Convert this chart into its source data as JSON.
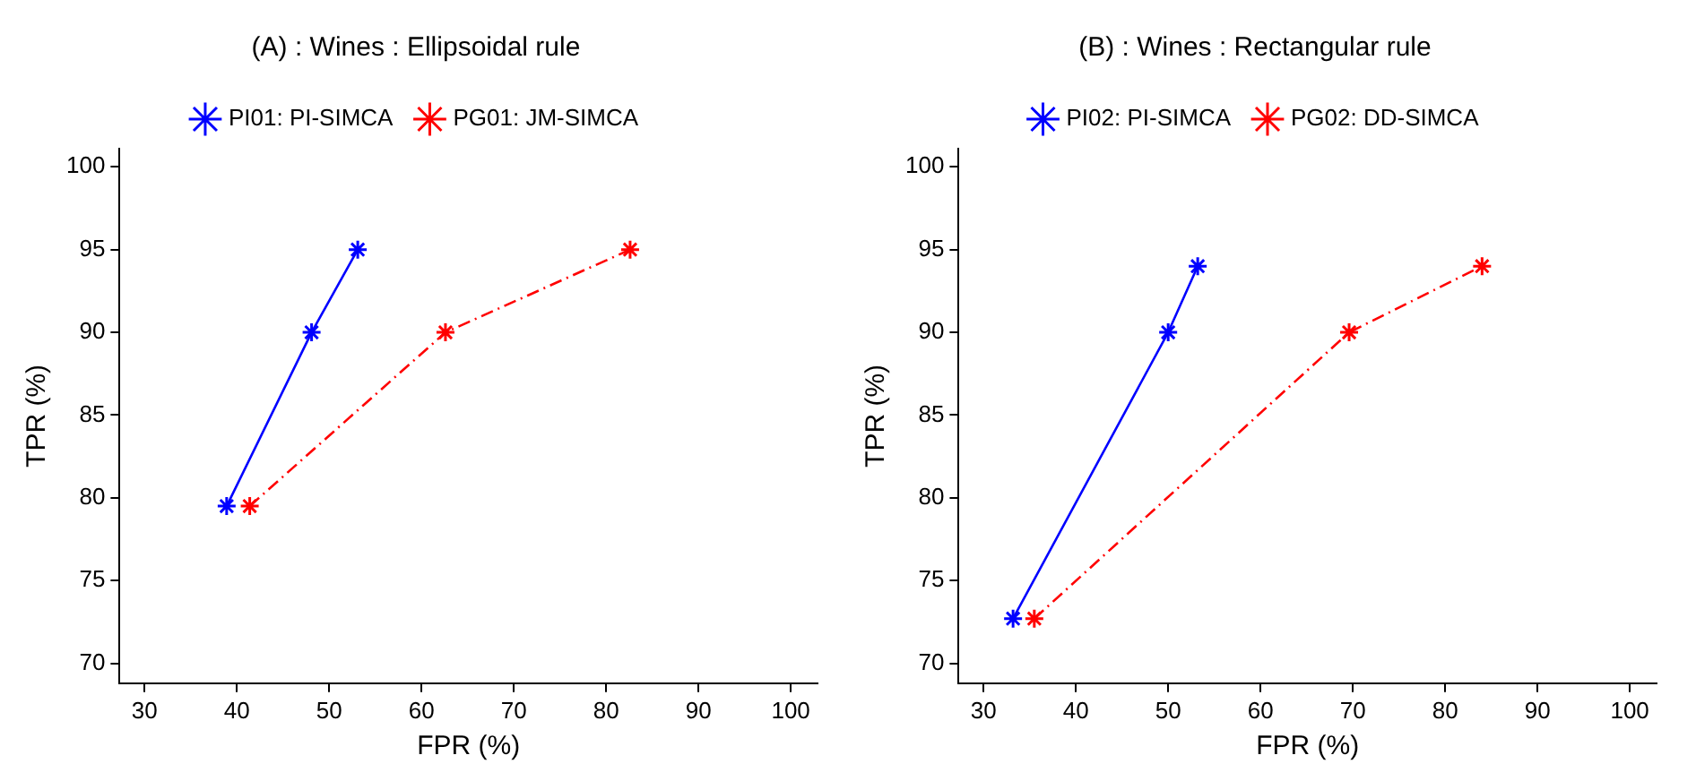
{
  "chart_data": [
    {
      "type": "line",
      "title": "(A) : Wines : Ellipsoidal rule",
      "xlabel": "FPR (%)",
      "ylabel": "TPR (%)",
      "xlim": [
        27.3,
        102.9
      ],
      "ylim": [
        68.8,
        101.1
      ],
      "xticks": [
        30,
        40,
        50,
        60,
        70,
        80,
        90,
        100
      ],
      "yticks": [
        70,
        75,
        80,
        85,
        90,
        95,
        100
      ],
      "grid": false,
      "legend": "top",
      "series": [
        {
          "name": "PI01: PI-SIMCA",
          "color": "#0000ff",
          "x": [
            38.9,
            48.1,
            53.1
          ],
          "values": [
            79.5,
            90,
            95
          ],
          "marker": "cross",
          "line_style": "solid"
        },
        {
          "name": "PG01: JM-SIMCA",
          "color": "#ff0000",
          "x": [
            41.4,
            62.6,
            82.6
          ],
          "values": [
            79.5,
            90,
            95
          ],
          "marker": "cross",
          "line_style": "dashed"
        }
      ]
    },
    {
      "type": "line",
      "title": "(B) : Wines : Rectangular rule",
      "xlabel": "FPR (%)",
      "ylabel": "TPR (%)",
      "xlim": [
        27.3,
        102.9
      ],
      "ylim": [
        68.8,
        101.1
      ],
      "xticks": [
        30,
        40,
        50,
        60,
        70,
        80,
        90,
        100
      ],
      "yticks": [
        70,
        75,
        80,
        85,
        90,
        95,
        100
      ],
      "grid": false,
      "legend": "top",
      "series": [
        {
          "name": "PI02: PI-SIMCA",
          "color": "#0000ff",
          "x": [
            33.2,
            50,
            53.2
          ],
          "values": [
            72.7,
            90,
            94
          ],
          "marker": "cross",
          "line_style": "solid"
        },
        {
          "name": "PG02: DD-SIMCA",
          "color": "#ff0000",
          "x": [
            35.5,
            69.6,
            84
          ],
          "values": [
            72.7,
            90,
            94
          ],
          "marker": "cross",
          "line_style": "dashed"
        }
      ]
    }
  ]
}
